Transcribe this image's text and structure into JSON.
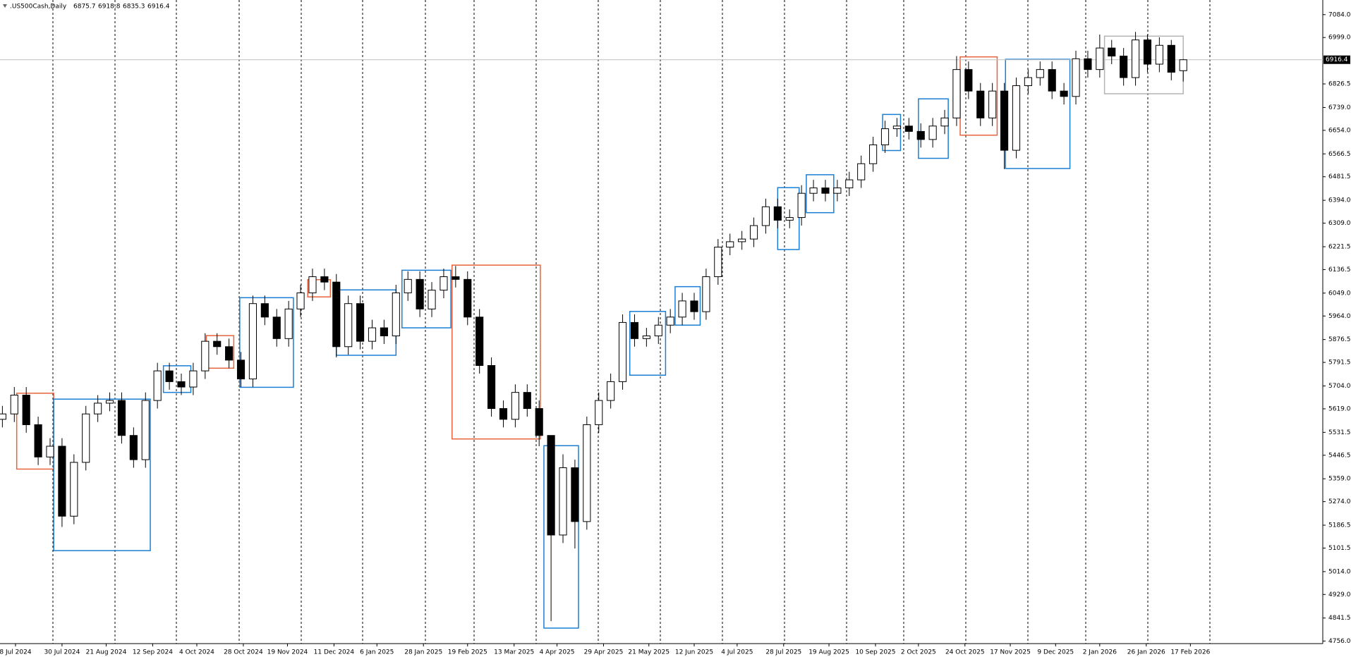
{
  "chart_data": {
    "type": "candlestick",
    "title": ".US500Cash,Daily",
    "open": [
      5580,
      5600,
      5670,
      5560,
      5440,
      5480,
      5220,
      5420,
      5600,
      5640,
      5650,
      5520,
      5430,
      5650,
      5760,
      5720,
      5700,
      5760,
      5870,
      5850,
      5800,
      5730,
      6010,
      5960,
      5880,
      5990,
      6050,
      6110,
      6090,
      5850,
      6010,
      5870,
      5920,
      5890,
      6050,
      6100,
      5990,
      6060,
      6110,
      6100,
      5960,
      5780,
      5620,
      5580,
      5680,
      5620,
      5520,
      5150,
      5400,
      5200,
      5560,
      5650,
      5720,
      5940,
      5880,
      5890,
      5930,
      5960,
      6020,
      5980,
      6110,
      6220,
      6240,
      6250,
      6300,
      6370,
      6320,
      6330,
      6420,
      6440,
      6420,
      6440,
      6470,
      6530,
      6600,
      6660,
      6670,
      6650,
      6620,
      6670,
      6700,
      6880,
      6800,
      6700,
      6800,
      6580,
      6820,
      6850,
      6880,
      6800,
      6780,
      6920,
      6880,
      6960,
      6930,
      6850,
      6990,
      6900,
      6970,
      6875.7
    ],
    "high": [
      5630,
      5700,
      5700,
      5590,
      5510,
      5510,
      5450,
      5630,
      5670,
      5680,
      5680,
      5550,
      5680,
      5790,
      5790,
      5750,
      5790,
      5900,
      5900,
      5880,
      5830,
      6040,
      6040,
      5990,
      6020,
      6080,
      6140,
      6140,
      6120,
      6040,
      6040,
      5950,
      5950,
      6080,
      6130,
      6130,
      6090,
      6140,
      6150,
      6130,
      5990,
      5810,
      5650,
      5710,
      5710,
      5650,
      5500,
      5450,
      5430,
      5590,
      5680,
      5750,
      5970,
      5970,
      5920,
      5960,
      5990,
      6050,
      6050,
      6140,
      6250,
      6270,
      6280,
      6330,
      6400,
      6400,
      6360,
      6450,
      6470,
      6470,
      6470,
      6500,
      6560,
      6630,
      6690,
      6700,
      6700,
      6680,
      6700,
      6730,
      6930,
      6910,
      6830,
      6830,
      6830,
      6850,
      6880,
      6910,
      6910,
      6830,
      6950,
      6950,
      7010,
      6990,
      6960,
      7020,
      7010,
      7000,
      6990,
      6918.8
    ],
    "low": [
      5550,
      5570,
      5530,
      5410,
      5410,
      5180,
      5190,
      5390,
      5570,
      5610,
      5490,
      5400,
      5400,
      5620,
      5690,
      5670,
      5670,
      5730,
      5820,
      5770,
      5700,
      5700,
      5930,
      5850,
      5850,
      5960,
      6020,
      6060,
      5810,
      5820,
      5840,
      5840,
      5860,
      5860,
      6020,
      5960,
      5960,
      6030,
      6070,
      5930,
      5750,
      5590,
      5550,
      5550,
      5590,
      5480,
      4830,
      5120,
      5100,
      5170,
      5530,
      5620,
      5690,
      5850,
      5850,
      5860,
      5900,
      5930,
      5950,
      5950,
      6080,
      6190,
      6210,
      6220,
      6270,
      6290,
      6290,
      6300,
      6390,
      6390,
      6390,
      6410,
      6440,
      6500,
      6570,
      6630,
      6620,
      6590,
      6590,
      6640,
      6670,
      6770,
      6670,
      6670,
      6510,
      6550,
      6790,
      6820,
      6770,
      6750,
      6750,
      6850,
      6850,
      6900,
      6820,
      6820,
      6870,
      6870,
      6840,
      6835.3
    ],
    "close": [
      5600,
      5670,
      5560,
      5440,
      5480,
      5220,
      5420,
      5600,
      5640,
      5650,
      5520,
      5430,
      5650,
      5760,
      5720,
      5700,
      5760,
      5870,
      5850,
      5800,
      5730,
      6010,
      5960,
      5880,
      5990,
      6050,
      6110,
      6090,
      5850,
      6010,
      5870,
      5920,
      5890,
      6050,
      6100,
      5990,
      6060,
      6110,
      6100,
      5960,
      5780,
      5620,
      5580,
      5680,
      5620,
      5520,
      5150,
      5400,
      5200,
      5560,
      5650,
      5720,
      5940,
      5880,
      5890,
      5930,
      5960,
      6020,
      5980,
      6110,
      6220,
      6240,
      6250,
      6300,
      6370,
      6320,
      6330,
      6420,
      6440,
      6420,
      6440,
      6470,
      6530,
      6600,
      6660,
      6670,
      6650,
      6620,
      6670,
      6700,
      6880,
      6800,
      6700,
      6800,
      6580,
      6820,
      6850,
      6880,
      6800,
      6780,
      6920,
      6880,
      6960,
      6930,
      6850,
      6990,
      6900,
      6970,
      6870,
      6916.4
    ],
    "up_color": "#ffffff",
    "down_color": "#000000",
    "xlim": [
      -0.2,
      110.7
    ],
    "ylim": [
      4746.4,
      7138.4
    ],
    "xticks": [
      {
        "value": 1.1,
        "label": "8 Jul 2024"
      },
      {
        "value": 5.0,
        "label": "30 Jul 2024"
      },
      {
        "value": 8.7,
        "label": "21 Aug 2024"
      },
      {
        "value": 12.6,
        "label": "12 Sep 2024"
      },
      {
        "value": 16.3,
        "label": "4 Oct 2024"
      },
      {
        "value": 20.2,
        "label": "28 Oct 2024"
      },
      {
        "value": 23.9,
        "label": "19 Nov 2024"
      },
      {
        "value": 27.8,
        "label": "11 Dec 2024"
      },
      {
        "value": 31.4,
        "label": "6 Jan 2025"
      },
      {
        "value": 35.3,
        "label": "28 Jan 2025"
      },
      {
        "value": 39.0,
        "label": "19 Feb 2025"
      },
      {
        "value": 42.9,
        "label": "13 Mar 2025"
      },
      {
        "value": 46.5,
        "label": "4 Apr 2025"
      },
      {
        "value": 50.4,
        "label": "29 Apr 2025"
      },
      {
        "value": 54.2,
        "label": "21 May 2025"
      },
      {
        "value": 58.0,
        "label": "12 Jun 2025"
      },
      {
        "value": 61.6,
        "label": "4 Jul 2025"
      },
      {
        "value": 65.5,
        "label": "28 Jul 2025"
      },
      {
        "value": 69.3,
        "label": "19 Aug 2025"
      },
      {
        "value": 73.2,
        "label": "10 Sep 2025"
      },
      {
        "value": 76.8,
        "label": "2 Oct 2025"
      },
      {
        "value": 80.7,
        "label": "24 Oct 2025"
      },
      {
        "value": 84.5,
        "label": "17 Nov 2025"
      },
      {
        "value": 88.3,
        "label": "9 Dec 2025"
      },
      {
        "value": 92.0,
        "label": "2 Jan 2026"
      },
      {
        "value": 95.9,
        "label": "26 Jan 2026"
      },
      {
        "value": 99.6,
        "label": "17 Feb 2026"
      }
    ],
    "yticks": [
      {
        "value": 7084,
        "label": "7084.0"
      },
      {
        "value": 6999,
        "label": "6999.0"
      },
      6826.5,
      {
        "value": 6739,
        "label": "6739.0"
      },
      {
        "value": 6654,
        "label": "6654.0"
      },
      6566.5,
      6481.5,
      {
        "value": 6394,
        "label": "6394.0"
      },
      {
        "value": 6309,
        "label": "6309.0"
      },
      6221.5,
      6136.5,
      {
        "value": 6049,
        "label": "6049.0"
      },
      {
        "value": 5964,
        "label": "5964.0"
      },
      5876.5,
      5791.5,
      {
        "value": 5704,
        "label": "5704.0"
      },
      {
        "value": 5619,
        "label": "5619.0"
      },
      5531.5,
      5446.5,
      {
        "value": 5359,
        "label": "5359.0"
      },
      {
        "value": 5274,
        "label": "5274.0"
      },
      5186.5,
      5101.5,
      {
        "value": 5014,
        "label": "5014.0"
      },
      {
        "value": 4929,
        "label": "4929.0"
      },
      4841.5,
      {
        "value": 4756,
        "label": "4756.0"
      }
    ],
    "boxes": [
      {
        "color": "#e8643c",
        "x0": 1.2,
        "x1": 4.3,
        "top": 5677,
        "bottom": 5395
      },
      {
        "color": "#1a7fd4",
        "x0": 4.3,
        "x1": 12.4,
        "top": 5655,
        "bottom": 5092
      },
      {
        "color": "#1a7fd4",
        "x0": 13.5,
        "x1": 15.8,
        "top": 5779,
        "bottom": 5680
      },
      {
        "color": "#e8643c",
        "x0": 17.1,
        "x1": 19.4,
        "top": 5891,
        "bottom": 5770
      },
      {
        "color": "#1a7fd4",
        "x0": 19.9,
        "x1": 24.4,
        "top": 6032,
        "bottom": 5699
      },
      {
        "color": "#e8643c",
        "x0": 25.6,
        "x1": 27.5,
        "top": 6099,
        "bottom": 6035
      },
      {
        "color": "#1a7fd4",
        "x0": 28.0,
        "x1": 33.0,
        "top": 6061,
        "bottom": 5818
      },
      {
        "color": "#1a7fd4",
        "x0": 33.5,
        "x1": 37.6,
        "top": 6134,
        "bottom": 5920
      },
      {
        "color": "#e8643c",
        "x0": 37.7,
        "x1": 45.1,
        "top": 6153,
        "bottom": 5507
      },
      {
        "color": "#1a7fd4",
        "x0": 45.4,
        "x1": 48.3,
        "top": 5482,
        "bottom": 4804
      },
      {
        "color": "#1a7fd4",
        "x0": 52.6,
        "x1": 55.6,
        "top": 5981,
        "bottom": 5744
      },
      {
        "color": "#1a7fd4",
        "x0": 56.4,
        "x1": 58.5,
        "top": 6073,
        "bottom": 5930
      },
      {
        "color": "#1a7fd4",
        "x0": 65.0,
        "x1": 66.8,
        "top": 6441,
        "bottom": 6211
      },
      {
        "color": "#1a7fd4",
        "x0": 67.4,
        "x1": 69.7,
        "top": 6489,
        "bottom": 6348
      },
      {
        "color": "#1a7fd4",
        "x0": 73.8,
        "x1": 75.3,
        "top": 6713,
        "bottom": 6579
      },
      {
        "color": "#1a7fd4",
        "x0": 76.8,
        "x1": 79.3,
        "top": 6771,
        "bottom": 6550
      },
      {
        "color": "#e8643c",
        "x0": 80.3,
        "x1": 83.4,
        "top": 6927,
        "bottom": 6636
      },
      {
        "color": "#1a7fd4",
        "x0": 84.1,
        "x1": 89.5,
        "top": 6918,
        "bottom": 6512
      },
      {
        "color": "#b4b4b4",
        "x0": 92.4,
        "x1": 99.0,
        "top": 7004,
        "bottom": 6790
      }
    ]
  }
}
